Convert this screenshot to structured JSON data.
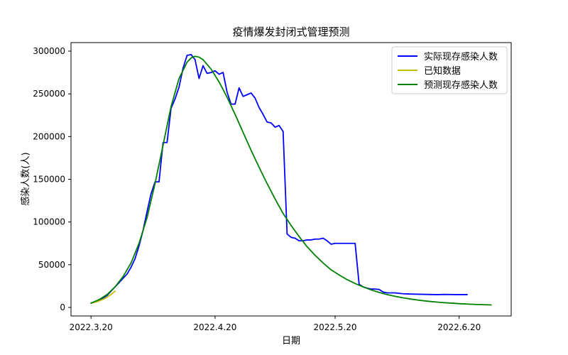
{
  "chart_data": {
    "type": "line",
    "title": "疫情爆发封闭式管理预测",
    "xlabel": "日期",
    "ylabel": "感染人数(人)",
    "x_range": [
      -5,
      105
    ],
    "ylim": [
      -10000,
      310000
    ],
    "x_ticks": [
      {
        "x": 0,
        "label": "2022.3.20"
      },
      {
        "x": 31,
        "label": "2022.4.20"
      },
      {
        "x": 61,
        "label": "2022.5.20"
      },
      {
        "x": 92,
        "label": "2022.6.20"
      }
    ],
    "y_ticks": [
      {
        "y": 0,
        "label": "0"
      },
      {
        "y": 50000,
        "label": "50000"
      },
      {
        "y": 100000,
        "label": "100000"
      },
      {
        "y": 150000,
        "label": "150000"
      },
      {
        "y": 200000,
        "label": "200000"
      },
      {
        "y": 250000,
        "label": "250000"
      },
      {
        "y": 300000,
        "label": "300000"
      }
    ],
    "x_axis_note": "x values are days counted from 2022.3.20",
    "legend_position": "top-right",
    "grid": false,
    "series": [
      {
        "name": "实际现存感染人数",
        "color": "#0000ff",
        "points": [
          [
            0,
            5000
          ],
          [
            1,
            6500
          ],
          [
            2,
            8500
          ],
          [
            3,
            11000
          ],
          [
            4,
            14000
          ],
          [
            5,
            19000
          ],
          [
            6,
            24000
          ],
          [
            7,
            29000
          ],
          [
            8,
            34000
          ],
          [
            9,
            39000
          ],
          [
            10,
            47000
          ],
          [
            11,
            57000
          ],
          [
            12,
            72000
          ],
          [
            13,
            90000
          ],
          [
            14,
            112000
          ],
          [
            15,
            133000
          ],
          [
            16,
            147000
          ],
          [
            17,
            147000
          ],
          [
            18,
            193000
          ],
          [
            19,
            193000
          ],
          [
            20,
            233000
          ],
          [
            21,
            244000
          ],
          [
            22,
            258000
          ],
          [
            23,
            280000
          ],
          [
            24,
            295000
          ],
          [
            25,
            296000
          ],
          [
            26,
            290000
          ],
          [
            27,
            268000
          ],
          [
            28,
            283000
          ],
          [
            29,
            274000
          ],
          [
            30,
            275000
          ],
          [
            31,
            277000
          ],
          [
            32,
            273000
          ],
          [
            33,
            275000
          ],
          [
            34,
            252000
          ],
          [
            35,
            238000
          ],
          [
            36,
            238000
          ],
          [
            37,
            257000
          ],
          [
            38,
            247000
          ],
          [
            39,
            249000
          ],
          [
            40,
            251000
          ],
          [
            41,
            245000
          ],
          [
            42,
            234000
          ],
          [
            43,
            226000
          ],
          [
            44,
            217000
          ],
          [
            45,
            216000
          ],
          [
            46,
            211000
          ],
          [
            47,
            213000
          ],
          [
            48,
            206000
          ],
          [
            49,
            86000
          ],
          [
            50,
            82000
          ],
          [
            51,
            81000
          ],
          [
            52,
            78000
          ],
          [
            53,
            78000
          ],
          [
            54,
            79000
          ],
          [
            55,
            79000
          ],
          [
            56,
            80000
          ],
          [
            57,
            80000
          ],
          [
            58,
            81000
          ],
          [
            59,
            78000
          ],
          [
            60,
            74000
          ],
          [
            61,
            75000
          ],
          [
            62,
            75000
          ],
          [
            63,
            75000
          ],
          [
            64,
            75000
          ],
          [
            65,
            75000
          ],
          [
            66,
            75000
          ],
          [
            67,
            27000
          ],
          [
            68,
            24000
          ],
          [
            69,
            22500
          ],
          [
            70,
            21500
          ],
          [
            71,
            21500
          ],
          [
            72,
            21000
          ],
          [
            73,
            18000
          ],
          [
            74,
            17000
          ],
          [
            75,
            17000
          ],
          [
            76,
            17000
          ],
          [
            77,
            16500
          ],
          [
            78,
            16000
          ],
          [
            79,
            15800
          ],
          [
            80,
            15600
          ],
          [
            81,
            15500
          ],
          [
            82,
            15400
          ],
          [
            83,
            15300
          ],
          [
            84,
            15200
          ],
          [
            85,
            15100
          ],
          [
            86,
            15000
          ],
          [
            87,
            15000
          ],
          [
            88,
            15200
          ],
          [
            89,
            15100
          ],
          [
            90,
            15100
          ],
          [
            91,
            15000
          ],
          [
            92,
            15000
          ],
          [
            93,
            15000
          ],
          [
            94,
            15000
          ]
        ]
      },
      {
        "name": "已知数据",
        "color": "#bfbf00",
        "points": [
          [
            0,
            5000
          ],
          [
            1,
            6000
          ],
          [
            2,
            7500
          ],
          [
            3,
            9500
          ],
          [
            4,
            12000
          ],
          [
            5,
            15000
          ],
          [
            6,
            19000
          ]
        ]
      },
      {
        "name": "预测现存感染人数",
        "color": "#008000",
        "points": [
          [
            0,
            5000
          ],
          [
            2,
            9000
          ],
          [
            4,
            15000
          ],
          [
            6,
            24000
          ],
          [
            8,
            36000
          ],
          [
            10,
            52000
          ],
          [
            12,
            75000
          ],
          [
            14,
            105000
          ],
          [
            16,
            145000
          ],
          [
            18,
            190000
          ],
          [
            20,
            235000
          ],
          [
            22,
            268000
          ],
          [
            24,
            287000
          ],
          [
            25,
            292000
          ],
          [
            26,
            294000
          ],
          [
            27,
            293000
          ],
          [
            28,
            290000
          ],
          [
            30,
            279000
          ],
          [
            32,
            264000
          ],
          [
            34,
            246000
          ],
          [
            36,
            226000
          ],
          [
            38,
            205000
          ],
          [
            40,
            184000
          ],
          [
            42,
            164000
          ],
          [
            44,
            145000
          ],
          [
            46,
            127000
          ],
          [
            48,
            110000
          ],
          [
            50,
            96000
          ],
          [
            52,
            83000
          ],
          [
            54,
            71000
          ],
          [
            56,
            61000
          ],
          [
            58,
            52000
          ],
          [
            60,
            44000
          ],
          [
            62,
            38000
          ],
          [
            64,
            32500
          ],
          [
            66,
            28000
          ],
          [
            68,
            24000
          ],
          [
            70,
            20500
          ],
          [
            72,
            17500
          ],
          [
            74,
            15000
          ],
          [
            76,
            13000
          ],
          [
            78,
            11200
          ],
          [
            80,
            9700
          ],
          [
            82,
            8400
          ],
          [
            84,
            7300
          ],
          [
            86,
            6400
          ],
          [
            88,
            5600
          ],
          [
            90,
            5000
          ],
          [
            92,
            4400
          ],
          [
            94,
            3900
          ],
          [
            96,
            3500
          ],
          [
            98,
            3200
          ],
          [
            100,
            2900
          ]
        ]
      }
    ]
  }
}
